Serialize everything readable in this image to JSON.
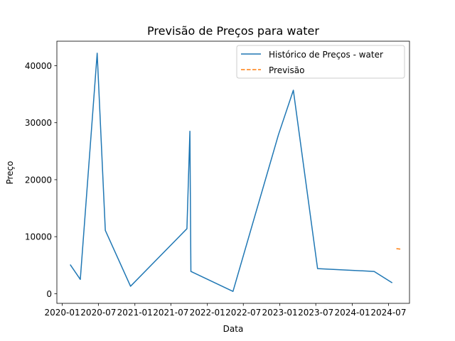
{
  "chart_data": {
    "type": "line",
    "title": "Previsão de Preços para water",
    "xlabel": "Data",
    "ylabel": "Preço",
    "x_axis": {
      "type": "date",
      "range": [
        "2019-12-05",
        "2024-10-15"
      ],
      "ticks": [
        "2020-01",
        "2020-07",
        "2021-01",
        "2021-07",
        "2022-01",
        "2022-07",
        "2023-01",
        "2023-07",
        "2024-01",
        "2024-07"
      ],
      "tick_dates": [
        "2020-01-01",
        "2020-07-01",
        "2021-01-01",
        "2021-07-01",
        "2022-01-01",
        "2022-07-01",
        "2023-01-01",
        "2023-07-01",
        "2024-01-01",
        "2024-07-01"
      ]
    },
    "y_axis": {
      "range": [
        -1700,
        44300
      ],
      "ticks": [
        0,
        10000,
        20000,
        30000,
        40000
      ]
    },
    "grid": false,
    "legend": {
      "placement": "top-right",
      "entries": [
        "Histórico de Preços - water",
        "Previsão"
      ]
    },
    "series": [
      {
        "name": "Histórico de Preços - water",
        "color": "#1f77b4",
        "style": "solid",
        "points": [
          {
            "x": "2020-02-10",
            "y": 5100
          },
          {
            "x": "2020-04-01",
            "y": 2500
          },
          {
            "x": "2020-06-25",
            "y": 42200
          },
          {
            "x": "2020-08-05",
            "y": 11100
          },
          {
            "x": "2020-12-10",
            "y": 1300
          },
          {
            "x": "2021-09-20",
            "y": 11400
          },
          {
            "x": "2021-10-05",
            "y": 28500
          },
          {
            "x": "2021-10-10",
            "y": 3900
          },
          {
            "x": "2022-05-10",
            "y": 400
          },
          {
            "x": "2022-12-25",
            "y": 27900
          },
          {
            "x": "2023-03-10",
            "y": 35700
          },
          {
            "x": "2023-07-10",
            "y": 4400
          },
          {
            "x": "2024-04-20",
            "y": 3900
          },
          {
            "x": "2024-07-20",
            "y": 1900
          }
        ]
      },
      {
        "name": "Previsão",
        "color": "#ff7f0e",
        "style": "dashed",
        "points": [
          {
            "x": "2024-08-10",
            "y": 7900
          },
          {
            "x": "2024-09-05",
            "y": 7800
          }
        ]
      }
    ]
  }
}
